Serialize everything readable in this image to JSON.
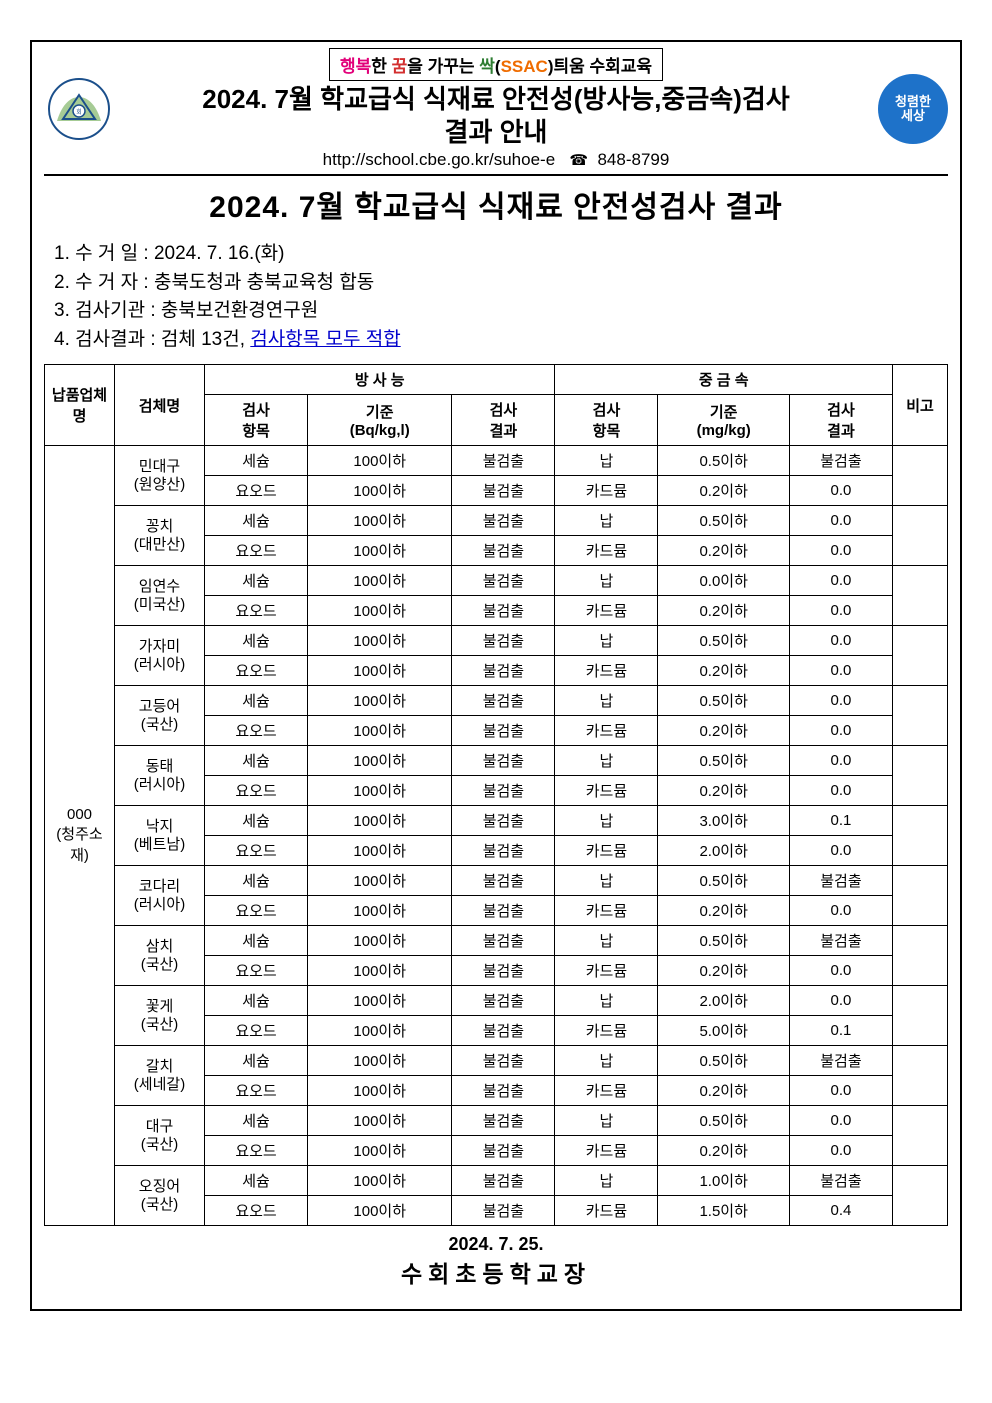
{
  "header": {
    "motto_parts": [
      {
        "text": "행복",
        "cls": "c-magenta"
      },
      {
        "text": "한 ",
        "cls": "c-black"
      },
      {
        "text": "꿈",
        "cls": "c-red"
      },
      {
        "text": "을 ",
        "cls": "c-black"
      },
      {
        "text": "가꾸는 ",
        "cls": "c-black"
      },
      {
        "text": "싹",
        "cls": "c-green"
      },
      {
        "text": "(",
        "cls": "c-black"
      },
      {
        "text": "SSAC",
        "cls": "c-orange"
      },
      {
        "text": ")",
        "cls": "c-black"
      },
      {
        "text": "틔움 수회교육",
        "cls": "c-black"
      }
    ],
    "title_line1": "2024. 7월 학교급식 식재료 안전성(방사능,중금속)검사",
    "title_line2": "결과 안내",
    "url": "http://school.cbe.go.kr/suhoe-e",
    "phone": "848-8799",
    "right_badge": "청렴한\n세상"
  },
  "big_heading": "2024. 7월 학교급식 식재료 안전성검사 결과",
  "info": {
    "line1": "1. 수 거 일 : 2024. 7. 16.(화)",
    "line2": "2. 수 거 자 : 충북도청과 충북교육청 합동",
    "line3": "3. 검사기관 : 충북보건환경연구원",
    "line4_prefix": "4. 검사결과 : 검체 13건, ",
    "line4_underline": "검사항목 모두 적합"
  },
  "table": {
    "headers": {
      "supplier": "납품업체명",
      "sample": "검체명",
      "rad_group": "방 사 능",
      "metal_group": "중 금 속",
      "rad_item": "검사\n항목",
      "rad_std": "기준\n(Bq/kg,l)",
      "rad_result": "검사\n결과",
      "metal_item": "검사\n항목",
      "metal_std": "기준\n(mg/kg)",
      "metal_result": "검사\n결과",
      "note": "비고"
    },
    "supplier": "000\n(청주소재)",
    "samples": [
      {
        "name": "민대구\n(원양산)",
        "rows": [
          {
            "rad_item": "세슘",
            "rad_std": "100이하",
            "rad_result": "불검출",
            "metal_item": "납",
            "metal_std": "0.5이하",
            "metal_result": "불검출"
          },
          {
            "rad_item": "요오드",
            "rad_std": "100이하",
            "rad_result": "불검출",
            "metal_item": "카드뮴",
            "metal_std": "0.2이하",
            "metal_result": "0.0"
          }
        ]
      },
      {
        "name": "꽁치\n(대만산)",
        "rows": [
          {
            "rad_item": "세슘",
            "rad_std": "100이하",
            "rad_result": "불검출",
            "metal_item": "납",
            "metal_std": "0.5이하",
            "metal_result": "0.0"
          },
          {
            "rad_item": "요오드",
            "rad_std": "100이하",
            "rad_result": "불검출",
            "metal_item": "카드뮴",
            "metal_std": "0.2이하",
            "metal_result": "0.0"
          }
        ]
      },
      {
        "name": "임연수\n(미국산)",
        "rows": [
          {
            "rad_item": "세슘",
            "rad_std": "100이하",
            "rad_result": "불검출",
            "metal_item": "납",
            "metal_std": "0.0이하",
            "metal_result": "0.0"
          },
          {
            "rad_item": "요오드",
            "rad_std": "100이하",
            "rad_result": "불검출",
            "metal_item": "카드뮴",
            "metal_std": "0.2이하",
            "metal_result": "0.0"
          }
        ]
      },
      {
        "name": "가자미\n(러시아)",
        "rows": [
          {
            "rad_item": "세슘",
            "rad_std": "100이하",
            "rad_result": "불검출",
            "metal_item": "납",
            "metal_std": "0.5이하",
            "metal_result": "0.0"
          },
          {
            "rad_item": "요오드",
            "rad_std": "100이하",
            "rad_result": "불검출",
            "metal_item": "카드뮴",
            "metal_std": "0.2이하",
            "metal_result": "0.0"
          }
        ]
      },
      {
        "name": "고등어\n(국산)",
        "rows": [
          {
            "rad_item": "세슘",
            "rad_std": "100이하",
            "rad_result": "불검출",
            "metal_item": "납",
            "metal_std": "0.5이하",
            "metal_result": "0.0"
          },
          {
            "rad_item": "요오드",
            "rad_std": "100이하",
            "rad_result": "불검출",
            "metal_item": "카드뮴",
            "metal_std": "0.2이하",
            "metal_result": "0.0"
          }
        ]
      },
      {
        "name": "동태\n(러시아)",
        "rows": [
          {
            "rad_item": "세슘",
            "rad_std": "100이하",
            "rad_result": "불검출",
            "metal_item": "납",
            "metal_std": "0.5이하",
            "metal_result": "0.0"
          },
          {
            "rad_item": "요오드",
            "rad_std": "100이하",
            "rad_result": "불검출",
            "metal_item": "카드뮴",
            "metal_std": "0.2이하",
            "metal_result": "0.0"
          }
        ]
      },
      {
        "name": "낙지\n(베트남)",
        "rows": [
          {
            "rad_item": "세슘",
            "rad_std": "100이하",
            "rad_result": "불검출",
            "metal_item": "납",
            "metal_std": "3.0이하",
            "metal_result": "0.1"
          },
          {
            "rad_item": "요오드",
            "rad_std": "100이하",
            "rad_result": "불검출",
            "metal_item": "카드뮴",
            "metal_std": "2.0이하",
            "metal_result": "0.0"
          }
        ]
      },
      {
        "name": "코다리\n(러시아)",
        "rows": [
          {
            "rad_item": "세슘",
            "rad_std": "100이하",
            "rad_result": "불검출",
            "metal_item": "납",
            "metal_std": "0.5이하",
            "metal_result": "불검출"
          },
          {
            "rad_item": "요오드",
            "rad_std": "100이하",
            "rad_result": "불검출",
            "metal_item": "카드뮴",
            "metal_std": "0.2이하",
            "metal_result": "0.0"
          }
        ]
      },
      {
        "name": "삼치\n(국산)",
        "rows": [
          {
            "rad_item": "세슘",
            "rad_std": "100이하",
            "rad_result": "불검출",
            "metal_item": "납",
            "metal_std": "0.5이하",
            "metal_result": "불검출"
          },
          {
            "rad_item": "요오드",
            "rad_std": "100이하",
            "rad_result": "불검출",
            "metal_item": "카드뮴",
            "metal_std": "0.2이하",
            "metal_result": "0.0"
          }
        ]
      },
      {
        "name": "꽃게\n(국산)",
        "rows": [
          {
            "rad_item": "세슘",
            "rad_std": "100이하",
            "rad_result": "불검출",
            "metal_item": "납",
            "metal_std": "2.0이하",
            "metal_result": "0.0"
          },
          {
            "rad_item": "요오드",
            "rad_std": "100이하",
            "rad_result": "불검출",
            "metal_item": "카드뮴",
            "metal_std": "5.0이하",
            "metal_result": "0.1"
          }
        ]
      },
      {
        "name": "갈치\n(세네갈)",
        "rows": [
          {
            "rad_item": "세슘",
            "rad_std": "100이하",
            "rad_result": "불검출",
            "metal_item": "납",
            "metal_std": "0.5이하",
            "metal_result": "불검출"
          },
          {
            "rad_item": "요오드",
            "rad_std": "100이하",
            "rad_result": "불검출",
            "metal_item": "카드뮴",
            "metal_std": "0.2이하",
            "metal_result": "0.0"
          }
        ]
      },
      {
        "name": "대구\n(국산)",
        "rows": [
          {
            "rad_item": "세슘",
            "rad_std": "100이하",
            "rad_result": "불검출",
            "metal_item": "납",
            "metal_std": "0.5이하",
            "metal_result": "0.0"
          },
          {
            "rad_item": "요오드",
            "rad_std": "100이하",
            "rad_result": "불검출",
            "metal_item": "카드뮴",
            "metal_std": "0.2이하",
            "metal_result": "0.0"
          }
        ]
      },
      {
        "name": "오징어\n(국산)",
        "rows": [
          {
            "rad_item": "세슘",
            "rad_std": "100이하",
            "rad_result": "불검출",
            "metal_item": "납",
            "metal_std": "1.0이하",
            "metal_result": "불검출"
          },
          {
            "rad_item": "요오드",
            "rad_std": "100이하",
            "rad_result": "불검출",
            "metal_item": "카드뮴",
            "metal_std": "1.5이하",
            "metal_result": "0.4"
          }
        ]
      }
    ]
  },
  "footer": {
    "date": "2024. 7. 25.",
    "sign": "수회초등학교장"
  }
}
